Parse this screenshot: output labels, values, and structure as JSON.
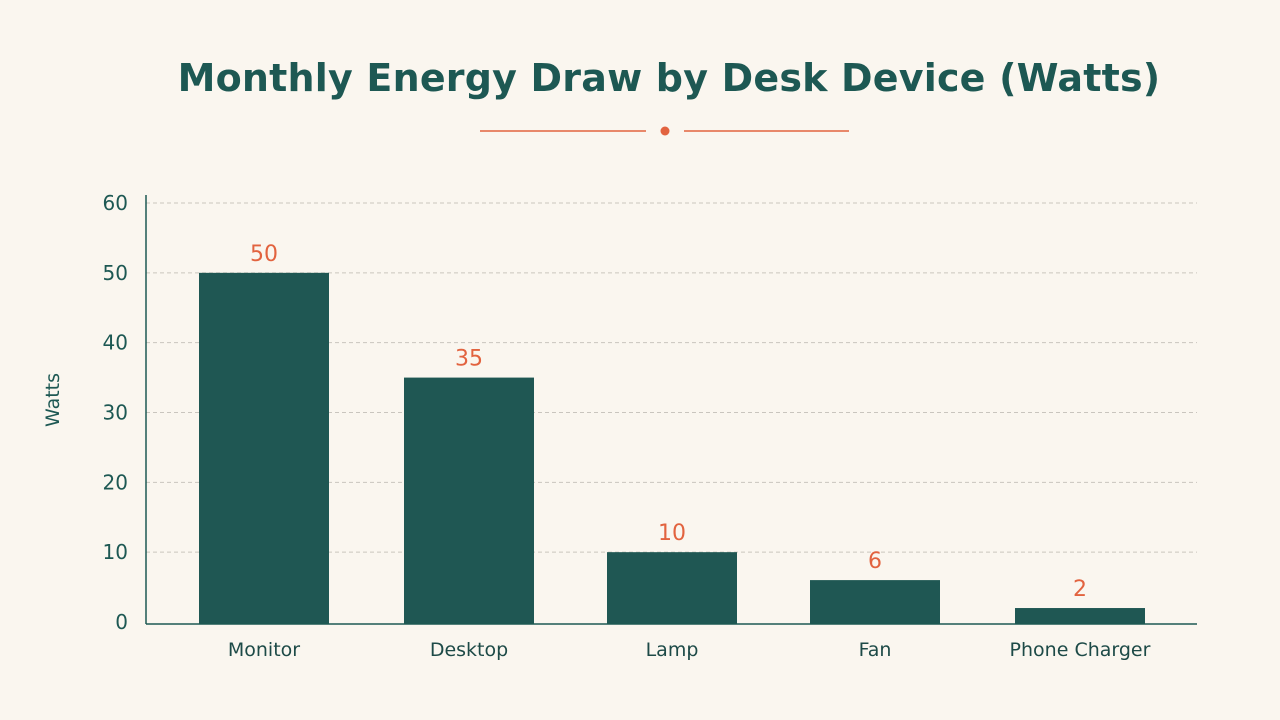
{
  "chart_data": {
    "type": "bar",
    "title": "Monthly Energy Draw by Desk Device (Watts)",
    "xlabel": "",
    "ylabel": "Watts",
    "categories": [
      "Monitor",
      "Desktop",
      "Lamp",
      "Fan",
      "Phone Charger"
    ],
    "values": [
      50,
      35,
      10,
      6,
      2
    ],
    "value_labels": [
      "50",
      "35",
      "10",
      "6",
      "2"
    ],
    "ylim": [
      0,
      60
    ],
    "yticks": [
      0,
      10,
      20,
      30,
      40,
      50,
      60
    ],
    "grid": true,
    "legend": "none",
    "colors": {
      "bar": "#1f5753",
      "value_label": "#e2633f",
      "title": "#1d5853",
      "accent": "#e2633f",
      "grid": "#c9c5be",
      "background": "#faf6ef"
    }
  }
}
